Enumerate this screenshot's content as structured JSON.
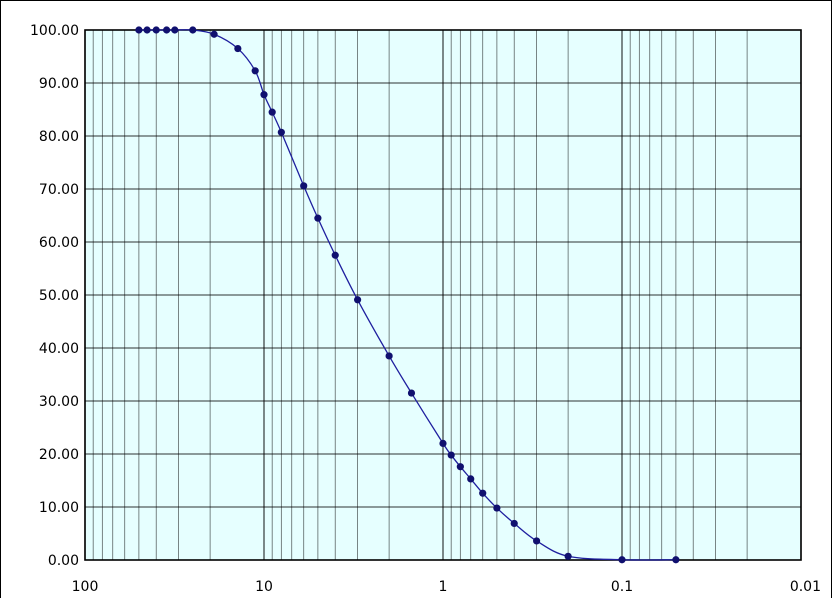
{
  "chart_data": {
    "type": "scatter",
    "x_scale": "log",
    "x_reversed": true,
    "xlim": [
      100,
      0.01
    ],
    "ylim": [
      0,
      100
    ],
    "grid": true,
    "colors": {
      "plot_bg": "#e6ffff",
      "line": "#1f1f9f",
      "marker": "#10106f",
      "grid": "#000000"
    },
    "y_tick_labels": [
      "0.00",
      "10.00",
      "20.00",
      "30.00",
      "40.00",
      "50.00",
      "60.00",
      "70.00",
      "80.00",
      "90.00",
      "100.00"
    ],
    "x_tick_labels": [
      "100",
      "10",
      "1",
      "0.1",
      "0.01"
    ],
    "series": [
      {
        "x": [
          50,
          45,
          40,
          35,
          31.5,
          25,
          19,
          14,
          11.2,
          10,
          9,
          8,
          6,
          5,
          4,
          3,
          2,
          1.5,
          1,
          0.9,
          0.8,
          0.7,
          0.6,
          0.5,
          0.4,
          0.3,
          0.2,
          0.1,
          0.05
        ],
        "y": [
          100,
          100,
          100,
          100,
          100,
          100,
          99.2,
          96.5,
          92.3,
          87.8,
          84.5,
          80.7,
          70.6,
          64.5,
          57.5,
          49.1,
          38.5,
          31.5,
          22.0,
          19.8,
          17.6,
          15.3,
          12.6,
          9.8,
          6.9,
          3.6,
          0.7,
          0.05,
          0.05
        ]
      }
    ]
  }
}
